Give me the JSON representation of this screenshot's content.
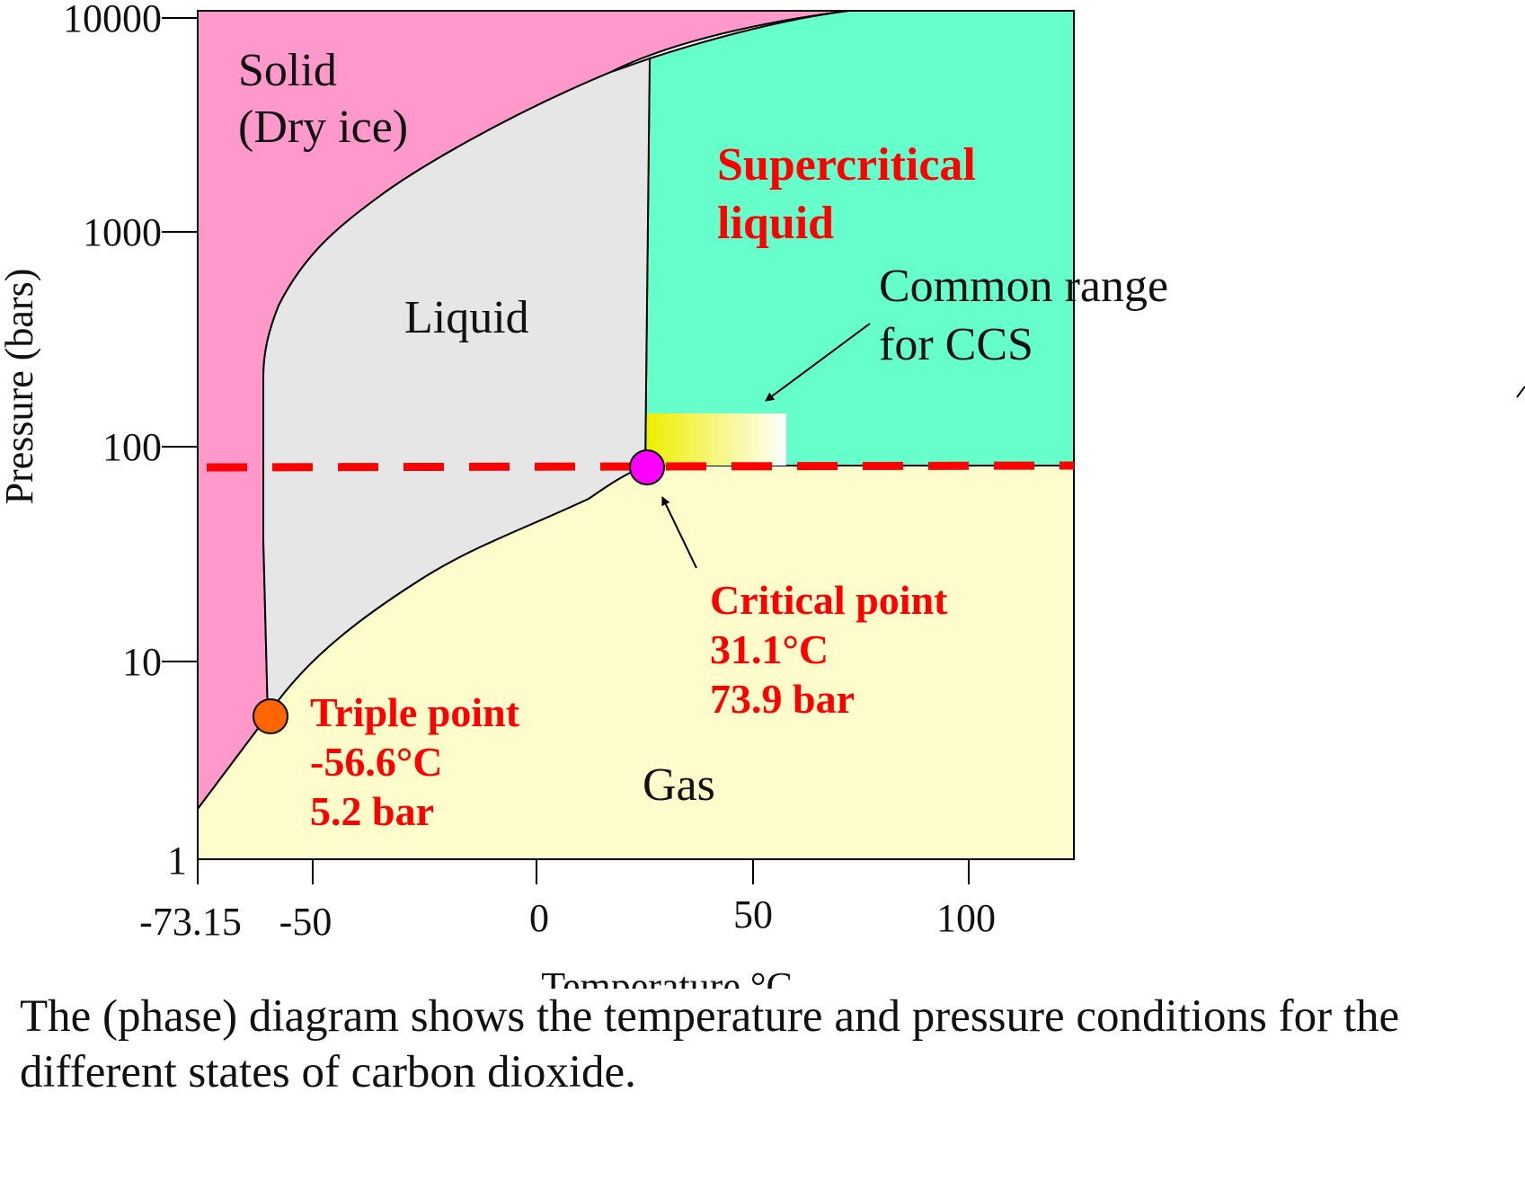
{
  "axes": {
    "y_label": "Pressure (bars)",
    "x_label": "Temperature °C",
    "y_ticks": [
      "10000",
      "1000",
      "100",
      "10",
      "1"
    ],
    "x_ticks": [
      "-73.15",
      "-50",
      "0",
      "50",
      "100"
    ],
    "y_scale": "log",
    "y_range": [
      1,
      10000
    ],
    "x_range": [
      -73.15,
      130
    ]
  },
  "regions": {
    "solid": {
      "line1": "Solid",
      "line2": "(Dry ice)",
      "color": "#FF99CC"
    },
    "liquid": {
      "label": "Liquid",
      "color": "#E6E6E6"
    },
    "gas": {
      "label": "Gas",
      "color": "#FFFCCC"
    },
    "supercritical": {
      "line1": "Supercritical",
      "line2": "liquid",
      "color": "#66FFCC"
    }
  },
  "ccs_range": {
    "line1": "Common range",
    "line2": "for CCS",
    "gradient_from": "#EEEE00",
    "gradient_to": "#FFFFFF"
  },
  "triple_point": {
    "title": "Triple point",
    "temp": "-56.6°C",
    "pressure": "5.2 bar",
    "color": "#FF6600"
  },
  "critical_point": {
    "title": "Critical point",
    "temp": "31.1°C",
    "pressure": "73.9 bar",
    "color": "#FF00FF"
  },
  "colors": {
    "annotation": "#FF0000",
    "dashed_line": "#FF0000",
    "text": "#111111"
  },
  "caption": "The (phase) diagram shows the temperature and pressure conditions for the different states of carbon dioxide."
}
